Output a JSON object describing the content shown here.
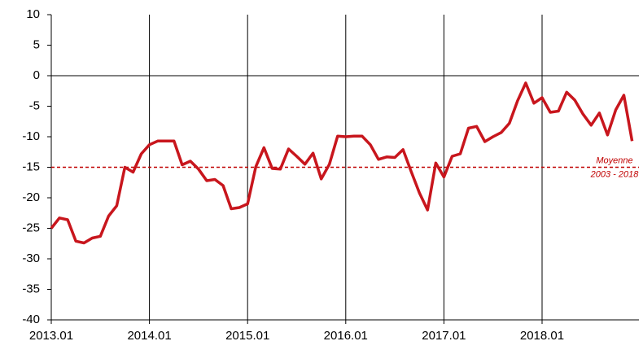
{
  "chart_data": {
    "type": "line",
    "categories": [
      "2013.01",
      null,
      null,
      null,
      null,
      null,
      null,
      null,
      null,
      null,
      null,
      null,
      "2014.01",
      null,
      null,
      null,
      null,
      null,
      null,
      null,
      null,
      null,
      null,
      null,
      "2015.01",
      null,
      null,
      null,
      null,
      null,
      null,
      null,
      null,
      null,
      null,
      null,
      "2016.01",
      null,
      null,
      null,
      null,
      null,
      null,
      null,
      null,
      null,
      null,
      null,
      "2017.01",
      null,
      null,
      null,
      null,
      null,
      null,
      null,
      null,
      null,
      null,
      null,
      "2018.01",
      null,
      null,
      null,
      null,
      null,
      null,
      null,
      null,
      null,
      null,
      null
    ],
    "values": [
      -25,
      -23.3,
      -23.6,
      -27.1,
      -27.4,
      -26.6,
      -26.3,
      -23.0,
      -21.3,
      -15.0,
      -15.8,
      -12.8,
      -11.3,
      -10.7,
      -10.7,
      -10.7,
      -14.6,
      -14.0,
      -15.3,
      -17.2,
      -17.0,
      -18.0,
      -21.8,
      -21.6,
      -21.0,
      -14.9,
      -11.8,
      -15.2,
      -15.3,
      -12.0,
      -13.2,
      -14.5,
      -12.7,
      -16.9,
      -14.5,
      -9.9,
      -10.0,
      -9.9,
      -9.9,
      -11.3,
      -13.7,
      -13.3,
      -13.4,
      -12.1,
      -15.7,
      -19.2,
      -22.0,
      -14.3,
      -16.6,
      -13.2,
      -12.8,
      -8.6,
      -8.3,
      -10.8,
      -10.0,
      -9.3,
      -7.8,
      -4.1,
      -1.2,
      -4.5,
      -3.6,
      -6.0,
      -5.8,
      -2.7,
      -4.0,
      -6.3,
      -8.1,
      -6.1,
      -9.7,
      -5.6,
      -3.2,
      -10.7
    ],
    "color": "#c8161d",
    "ylim": [
      -40,
      10
    ],
    "yticks": [
      -40,
      -35,
      -30,
      -25,
      -20,
      -15,
      -10,
      -5,
      0,
      5,
      10
    ],
    "reference_line": {
      "value": -15,
      "color": "#c00000",
      "labels": [
        "Moyenne",
        "2003 - 2018"
      ]
    }
  }
}
